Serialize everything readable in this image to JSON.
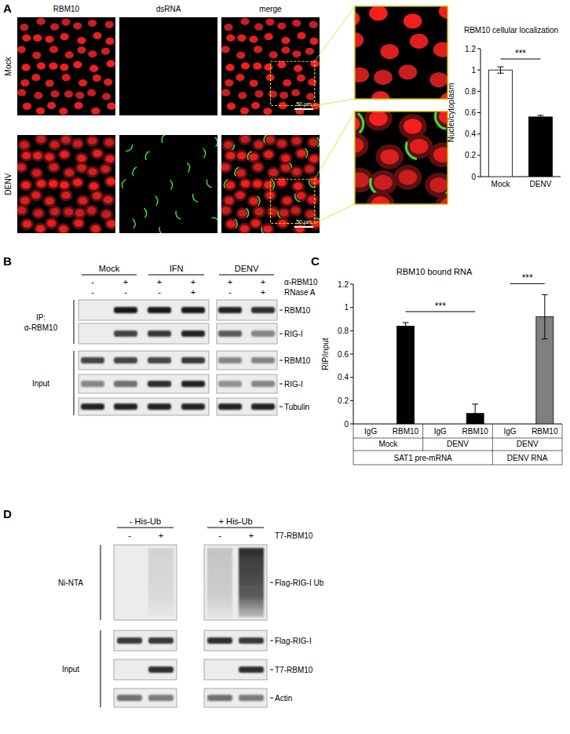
{
  "panel_labels": [
    "A",
    "B",
    "C",
    "D"
  ],
  "panel_a": {
    "columns": [
      "RBM10",
      "dsRNA",
      "merge"
    ],
    "rows": [
      "Mock",
      "DENV"
    ],
    "scale_bar": "50 µm"
  },
  "chart_data": [
    {
      "type": "bar",
      "title": "RBM10 cellular localization",
      "y_label": "Nuclei/cytoplasm",
      "categories": [
        "Mock",
        "DENV"
      ],
      "values": [
        1.0,
        0.56
      ],
      "errors": [
        0.03,
        0.015
      ],
      "colors": [
        "#ffffff",
        "#000000"
      ],
      "ylim": [
        0,
        1.2
      ],
      "yticks": [
        0,
        0.2,
        0.4,
        0.6,
        0.8,
        1,
        1.2
      ],
      "annotations": [
        {
          "text": "***",
          "between": [
            0,
            1
          ]
        }
      ]
    },
    {
      "type": "bar",
      "title": "RBM10 bound RNA",
      "y_label": "RIP/input",
      "categories": [
        "IgG",
        "RBM10",
        "IgG",
        "RBM10",
        "IgG",
        "RBM10"
      ],
      "values": [
        0,
        0.84,
        0,
        0.09,
        0,
        0.92
      ],
      "errors": [
        0,
        0.03,
        0,
        0.08,
        0,
        0.19
      ],
      "colors": [
        "#000000",
        "#000000",
        "#000000",
        "#000000",
        "#7f7f7f",
        "#7f7f7f"
      ],
      "groups": [
        {
          "label": "Mock",
          "count": 2
        },
        {
          "label": "DENV",
          "count": 2
        },
        {
          "label": "DENV",
          "count": 2
        }
      ],
      "targets": [
        {
          "label": "SAT1 pre-mRNA",
          "count": 4
        },
        {
          "label": "DENV RNA",
          "count": 2
        }
      ],
      "ylim": [
        0,
        1.2
      ],
      "yticks": [
        0,
        0.2,
        0.4,
        0.6,
        0.8,
        1,
        1.2
      ],
      "annotations": [
        {
          "text": "***",
          "between": [
            1,
            3
          ]
        },
        {
          "text": "***",
          "between": [
            4,
            5
          ]
        }
      ]
    }
  ],
  "panel_b": {
    "conditions": [
      {
        "label": "Mock",
        "lanes": 2
      },
      {
        "label": "IFN",
        "lanes": 2
      },
      {
        "label": "DENV",
        "lanes": 2
      }
    ],
    "treatments": [
      {
        "label": "α-RBM10",
        "signs": [
          "-",
          "+",
          "+",
          "+",
          "+",
          "+"
        ]
      },
      {
        "label": "RNase A",
        "signs": [
          "-",
          "-",
          "-",
          "+",
          "-",
          "+"
        ]
      }
    ],
    "sections": [
      {
        "label": [
          "IP:",
          "α-RBM10"
        ],
        "rows": [
          {
            "label": "RBM10",
            "bands": [
              0,
              0.95,
              0.95,
              0.95,
              0.9,
              0.85
            ]
          },
          {
            "label": "RIG-I",
            "bands": [
              0,
              0.75,
              0.8,
              0.9,
              0.65,
              0.45
            ]
          }
        ]
      },
      {
        "label": [
          "Input"
        ],
        "rows": [
          {
            "label": "RBM10",
            "bands": [
              0.75,
              0.75,
              0.75,
              0.8,
              0.45,
              0.45
            ]
          },
          {
            "label": "RIG-I",
            "bands": [
              0.45,
              0.55,
              0.85,
              0.9,
              0.4,
              0.45
            ]
          },
          {
            "label": "Tubulin",
            "bands": [
              0.9,
              0.9,
              0.9,
              0.9,
              0.9,
              0.9
            ]
          }
        ]
      }
    ]
  },
  "panel_d": {
    "conditions": [
      "- His-Ub",
      "+ His-Ub"
    ],
    "treatment": {
      "label": "T7-RBM10",
      "signs": [
        "-",
        "+",
        "-",
        "+"
      ]
    },
    "sections": [
      {
        "label": [
          "Ni-NTA"
        ],
        "rows": [
          {
            "label": "Flag-RIG-I Ub",
            "bands": [
              0,
              0.12,
              0.2,
              0.95
            ]
          }
        ]
      },
      {
        "label": [
          "Input"
        ],
        "rows": [
          {
            "label": "Flag-RIG-I",
            "bands": [
              0.8,
              0.8,
              0.85,
              0.8
            ]
          },
          {
            "label": "T7-RBM10",
            "bands": [
              0,
              0.85,
              0,
              0.85
            ]
          },
          {
            "label": "Actin",
            "bands": [
              0.55,
              0.5,
              0.55,
              0.5
            ]
          }
        ]
      }
    ]
  }
}
